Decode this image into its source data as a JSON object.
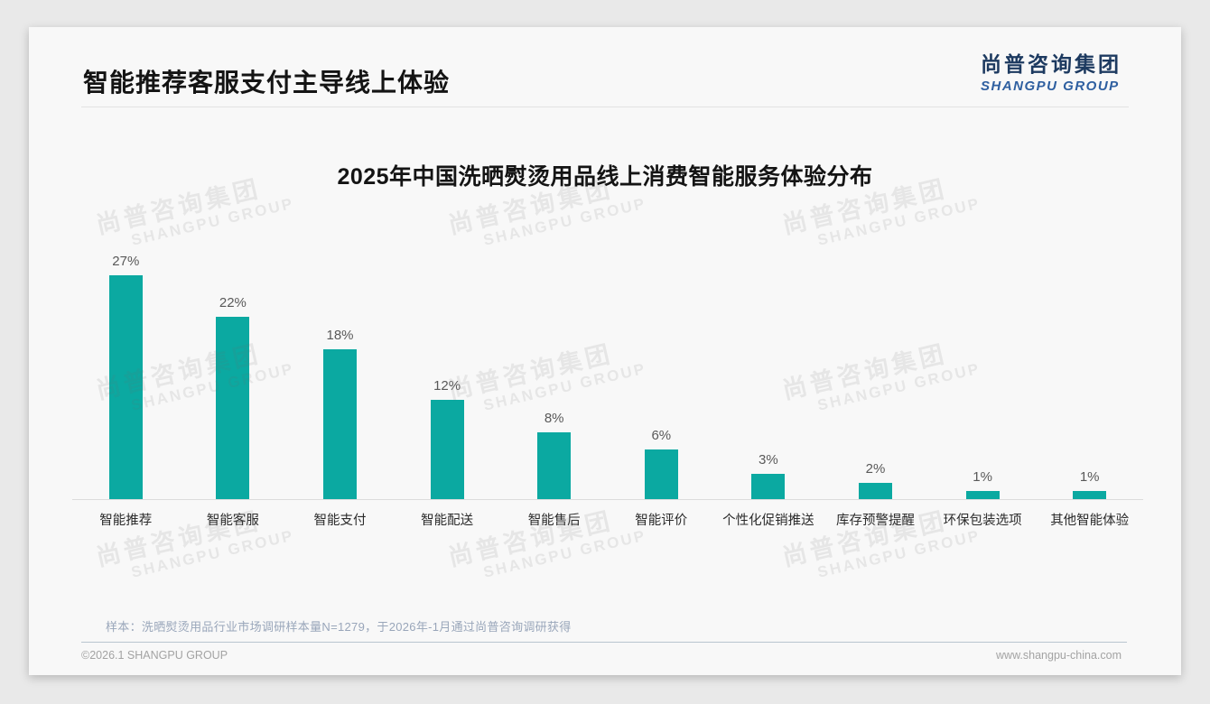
{
  "page": {
    "title": "智能推荐客服支付主导线上体验",
    "logo": {
      "cn": "尚普咨询集团",
      "en": "SHANGPU GROUP"
    },
    "note": "样本：洗晒熨烫用品行业市场调研样本量N=1279，于2026年-1月通过尚普咨询调研获得",
    "footer": {
      "left": "©2026.1 SHANGPU GROUP",
      "right": "www.shangpu-china.com"
    },
    "watermark": {
      "line1": "尚普咨询集团",
      "line2": "SHANGPU GROUP"
    }
  },
  "chart_data": {
    "type": "bar",
    "title": "2025年中国洗晒熨烫用品线上消费智能服务体验分布",
    "categories": [
      "智能推荐",
      "智能客服",
      "智能支付",
      "智能配送",
      "智能售后",
      "智能评价",
      "个性化促销推送",
      "库存预警提醒",
      "环保包装选项",
      "其他智能体验"
    ],
    "values": [
      27,
      22,
      18,
      12,
      8,
      6,
      3,
      2,
      1,
      1
    ],
    "unit": "%",
    "value_labels": [
      "27%",
      "22%",
      "18%",
      "12%",
      "8%",
      "6%",
      "3%",
      "2%",
      "1%",
      "1%"
    ],
    "title_position": "top-center",
    "xlabel": "",
    "ylabel": "",
    "ylim": [
      0,
      30
    ],
    "grid": false,
    "legend": false,
    "bar_color": "#0ba9a1"
  },
  "colors": {
    "bar": "#0ba9a1",
    "card_background": "#f8f8f8",
    "page_background": "#e9e9e9",
    "logo_cn": "#1d3a60",
    "logo_en": "#2e5fa0",
    "note_text": "#99a6ba",
    "footer_text": "#a3a3a3",
    "axis_line": "#dcdcdc"
  }
}
